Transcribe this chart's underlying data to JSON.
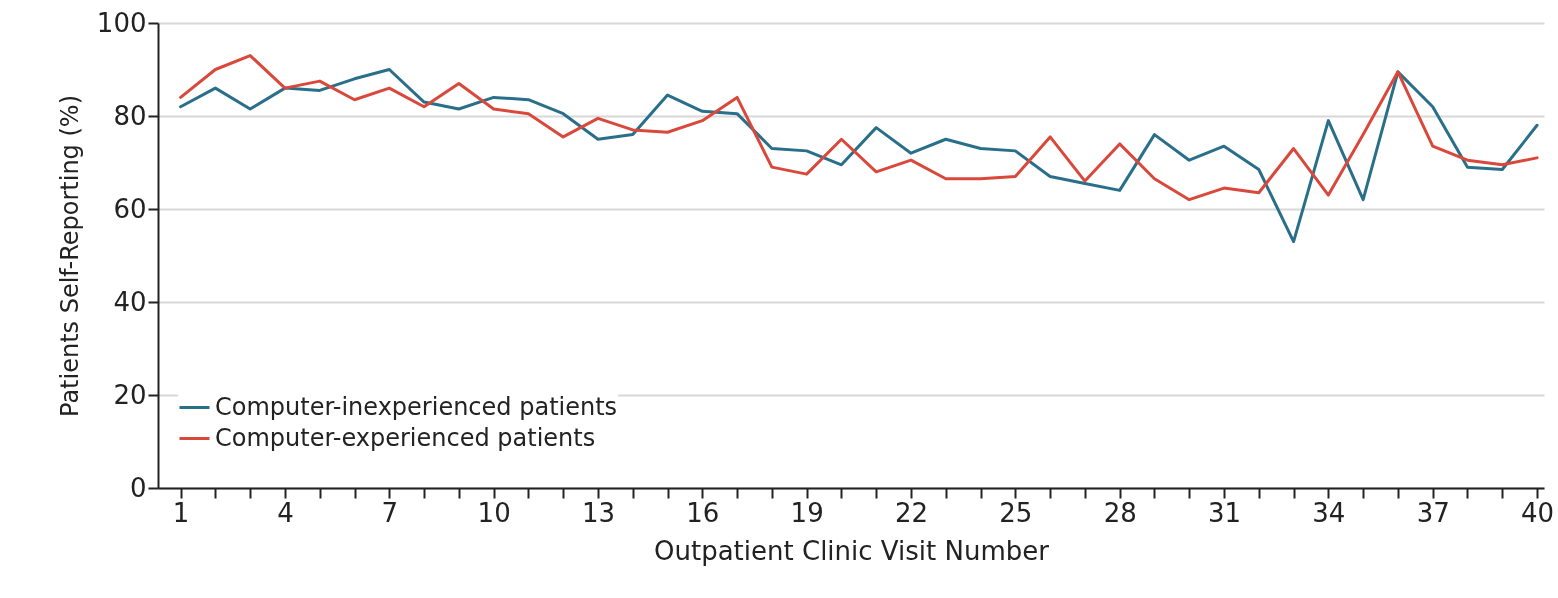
{
  "chart_data": {
    "type": "line",
    "xlabel": "Outpatient Clinic Visit Number",
    "ylabel": "Patients Self-Reporting (%)",
    "x": [
      1,
      2,
      3,
      4,
      5,
      6,
      7,
      8,
      9,
      10,
      11,
      12,
      13,
      14,
      15,
      16,
      17,
      18,
      19,
      20,
      21,
      22,
      23,
      24,
      25,
      26,
      27,
      28,
      29,
      30,
      31,
      32,
      33,
      34,
      35,
      36,
      37,
      38,
      39,
      40
    ],
    "series": [
      {
        "name": "Computer-inexperienced patients",
        "color": "#2a6f8a",
        "values": [
          82,
          86,
          81.5,
          86,
          85.5,
          88,
          90,
          83,
          81.5,
          84,
          83.5,
          80.5,
          75,
          76,
          84.5,
          81,
          80.5,
          73,
          72.5,
          69.5,
          77.5,
          72,
          75,
          73,
          72.5,
          67,
          65.5,
          64,
          76,
          70.5,
          73.5,
          68.5,
          53,
          79,
          62,
          89.5,
          82,
          69,
          68.5,
          78
        ]
      },
      {
        "name": "Computer-experienced patients",
        "color": "#d9483b",
        "values": [
          84,
          90,
          93,
          86,
          87.5,
          83.5,
          86,
          82,
          87,
          81.5,
          80.5,
          75.5,
          79.5,
          77,
          76.5,
          79,
          84,
          69,
          67.5,
          75,
          68,
          70.5,
          66.5,
          66.5,
          67,
          75.5,
          66,
          74,
          66.5,
          62,
          64.5,
          63.5,
          73,
          63,
          76,
          89.5,
          73.5,
          70.5,
          69.5,
          71
        ]
      }
    ],
    "xlim": [
      0.35,
      40.2
    ],
    "xticks": [
      1,
      {
        "value": 2,
        "label": null
      },
      {
        "value": 3,
        "label": null
      },
      4,
      {
        "value": 5,
        "label": null
      },
      {
        "value": 6,
        "label": null
      },
      7,
      {
        "value": 8,
        "label": null
      },
      {
        "value": 9,
        "label": null
      },
      10,
      {
        "value": 11,
        "label": null
      },
      {
        "value": 12,
        "label": null
      },
      13,
      {
        "value": 14,
        "label": null
      },
      {
        "value": 15,
        "label": null
      },
      16,
      {
        "value": 17,
        "label": null
      },
      {
        "value": 18,
        "label": null
      },
      19,
      {
        "value": 20,
        "label": null
      },
      {
        "value": 21,
        "label": null
      },
      22,
      {
        "value": 23,
        "label": null
      },
      {
        "value": 24,
        "label": null
      },
      25,
      {
        "value": 26,
        "label": null
      },
      {
        "value": 27,
        "label": null
      },
      28,
      {
        "value": 29,
        "label": null
      },
      {
        "value": 30,
        "label": null
      },
      31,
      {
        "value": 32,
        "label": null
      },
      {
        "value": 33,
        "label": null
      },
      34,
      {
        "value": 35,
        "label": null
      },
      {
        "value": 36,
        "label": null
      },
      37,
      {
        "value": 38,
        "label": null
      },
      {
        "value": 39,
        "label": null
      },
      40
    ],
    "ylim": [
      0,
      100
    ],
    "yticks": [
      0,
      20,
      40,
      60,
      80,
      100
    ],
    "grid": "y",
    "legend": "bottom left",
    "line_style": "solid"
  }
}
